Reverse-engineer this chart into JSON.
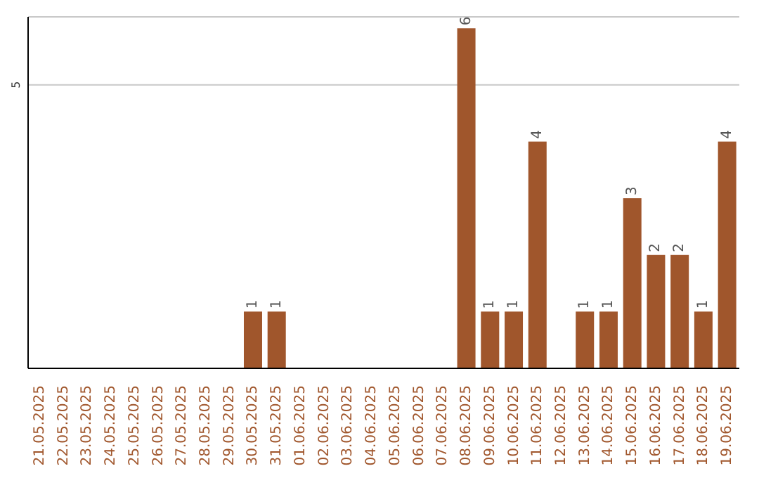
{
  "chart_data": {
    "type": "bar",
    "categories": [
      "21.05.2025",
      "22.05.2025",
      "23.05.2025",
      "24.05.2025",
      "25.05.2025",
      "26.05.2025",
      "27.05.2025",
      "28.05.2025",
      "29.05.2025",
      "30.05.2025",
      "31.05.2025",
      "01.06.2025",
      "02.06.2025",
      "03.06.2025",
      "04.06.2025",
      "05.06.2025",
      "06.06.2025",
      "07.06.2025",
      "08.06.2025",
      "09.06.2025",
      "10.06.2025",
      "11.06.2025",
      "12.06.2025",
      "13.06.2025",
      "14.06.2025",
      "15.06.2025",
      "16.06.2025",
      "17.06.2025",
      "18.06.2025",
      "19.06.2025"
    ],
    "values": [
      0,
      0,
      0,
      0,
      0,
      0,
      0,
      0,
      0,
      1,
      1,
      0,
      0,
      0,
      0,
      0,
      0,
      0,
      6,
      1,
      1,
      4,
      0,
      1,
      1,
      3,
      2,
      2,
      1,
      4
    ],
    "value_labels": [
      null,
      null,
      null,
      null,
      null,
      null,
      null,
      null,
      null,
      "1",
      "1",
      null,
      null,
      null,
      null,
      null,
      null,
      null,
      "6",
      "1",
      "1",
      "4",
      null,
      "1",
      "1",
      "3",
      "2",
      "2",
      "1",
      "4"
    ],
    "color": "#a0562c",
    "ylim": [
      0,
      6.2
    ],
    "yticks": [
      5
    ],
    "grid": "y"
  }
}
